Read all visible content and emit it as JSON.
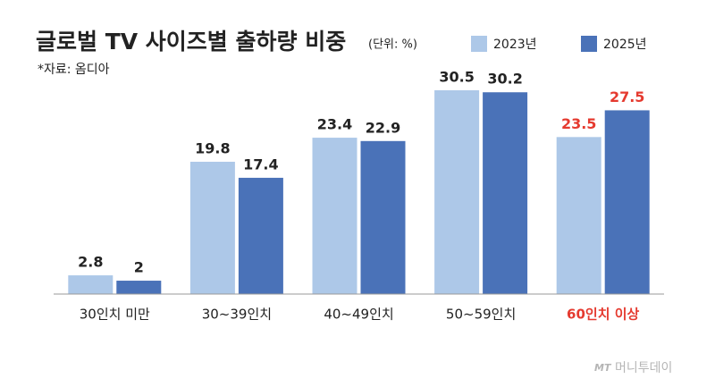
{
  "chart_data": {
    "type": "bar",
    "title": "글로벌 TV 사이즈별 출하량 비중",
    "unit": "(단위: %)",
    "source": "*자료: 옴디아",
    "categories": [
      "30인치 미만",
      "30~39인치",
      "40~49인치",
      "50~59인치",
      "60인치 이상"
    ],
    "label_colors": [
      "#222222",
      "#222222",
      "#222222",
      "#222222",
      "#e53a2f"
    ],
    "series": [
      {
        "name": "2023년",
        "color": "#adc8e8",
        "values": [
          2.8,
          19.8,
          23.4,
          30.5,
          23.5
        ]
      },
      {
        "name": "2025년",
        "color": "#4a72b8",
        "values": [
          2,
          17.4,
          22.9,
          30.2,
          27.5
        ]
      }
    ],
    "legend": "top-right",
    "watermark": {
      "logo": "MT",
      "text": "머니투데이"
    }
  }
}
